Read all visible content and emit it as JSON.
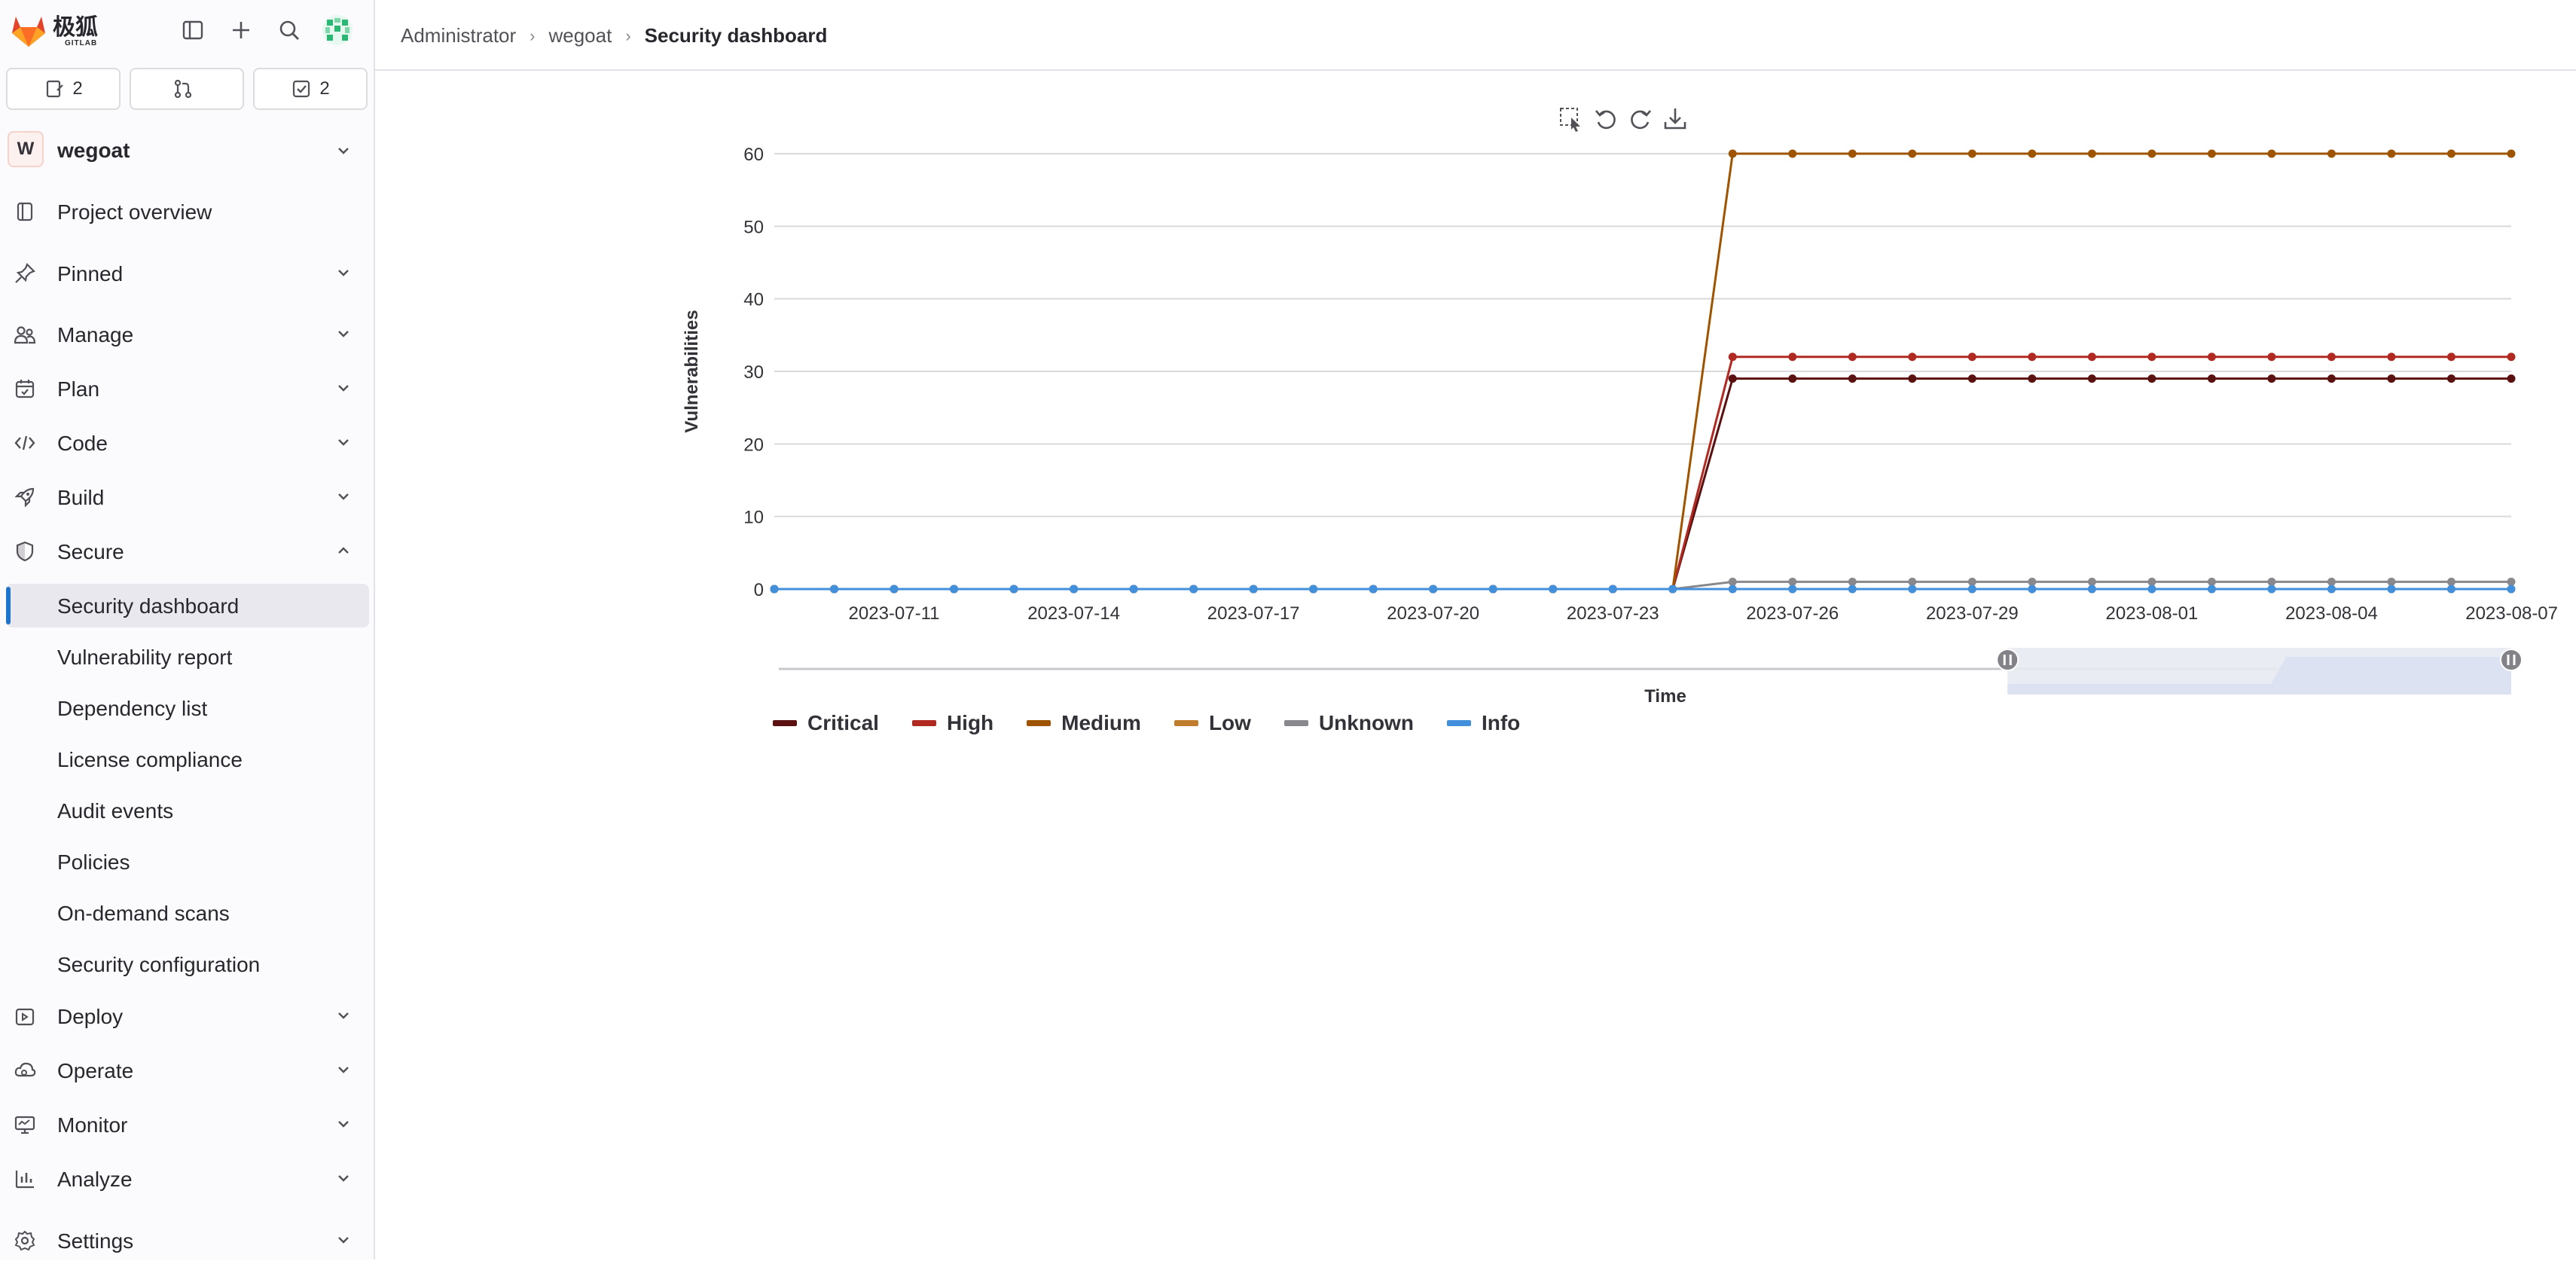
{
  "sidebar": {
    "brand": "极狐",
    "brand_sub": "GITLAB",
    "counters": [
      {
        "icon": "issues-icon",
        "count": "2"
      },
      {
        "icon": "merge-request-icon",
        "count": ""
      },
      {
        "icon": "todo-icon",
        "count": "2"
      }
    ],
    "project": {
      "initial": "W",
      "name": "wegoat"
    },
    "nav": [
      {
        "id": "project-overview",
        "label": "Project overview",
        "icon": "project-icon",
        "chevron": "none"
      },
      {
        "id": "pinned",
        "label": "Pinned",
        "icon": "pin-icon",
        "chevron": "down"
      },
      {
        "id": "manage",
        "label": "Manage",
        "icon": "users-icon",
        "chevron": "down"
      },
      {
        "id": "plan",
        "label": "Plan",
        "icon": "calendar-icon",
        "chevron": "down"
      },
      {
        "id": "code",
        "label": "Code",
        "icon": "code-icon",
        "chevron": "down"
      },
      {
        "id": "build",
        "label": "Build",
        "icon": "rocket-icon",
        "chevron": "down"
      },
      {
        "id": "secure",
        "label": "Secure",
        "icon": "shield-icon",
        "chevron": "up"
      }
    ],
    "secure_items": [
      "Security dashboard",
      "Vulnerability report",
      "Dependency list",
      "License compliance",
      "Audit events",
      "Policies",
      "On-demand scans",
      "Security configuration"
    ],
    "nav_bottom": [
      {
        "id": "deploy",
        "label": "Deploy",
        "icon": "deploy-icon"
      },
      {
        "id": "operate",
        "label": "Operate",
        "icon": "cloud-icon"
      },
      {
        "id": "monitor",
        "label": "Monitor",
        "icon": "monitor-icon"
      },
      {
        "id": "analyze",
        "label": "Analyze",
        "icon": "chart-icon"
      },
      {
        "id": "settings",
        "label": "Settings",
        "icon": "settings-icon"
      }
    ]
  },
  "breadcrumb": {
    "items": [
      "Administrator",
      "wegoat"
    ],
    "current": "Security dashboard"
  },
  "chart_data": {
    "type": "line",
    "title": "",
    "xlabel": "Time",
    "ylabel": "Vulnerabilities",
    "ylim": [
      0,
      60
    ],
    "yticks": [
      0,
      10,
      20,
      30,
      40,
      50,
      60
    ],
    "xticks": [
      "2023-07-11",
      "2023-07-14",
      "2023-07-17",
      "2023-07-20",
      "2023-07-23",
      "2023-07-26",
      "2023-07-29",
      "2023-08-01",
      "2023-08-04",
      "2023-08-07"
    ],
    "x_start": "2023-07-09",
    "x_end": "2023-08-07",
    "grid": true,
    "legend_position": "bottom-left",
    "dataZoom_range": [
      0.71,
      1.0
    ],
    "series": [
      {
        "name": "Critical",
        "color": "#5c1111",
        "values": [
          0,
          0,
          0,
          0,
          0,
          0,
          0,
          0,
          0,
          0,
          0,
          0,
          0,
          0,
          0,
          0,
          29,
          29,
          29,
          29,
          29,
          29,
          29,
          29,
          29,
          29,
          29,
          29,
          29,
          29
        ]
      },
      {
        "name": "High",
        "color": "#b02a22",
        "values": [
          0,
          0,
          0,
          0,
          0,
          0,
          0,
          0,
          0,
          0,
          0,
          0,
          0,
          0,
          0,
          0,
          32,
          32,
          32,
          32,
          32,
          32,
          32,
          32,
          32,
          32,
          32,
          32,
          32,
          32
        ]
      },
      {
        "name": "Medium",
        "color": "#9e5400",
        "values": [
          0,
          0,
          0,
          0,
          0,
          0,
          0,
          0,
          0,
          0,
          0,
          0,
          0,
          0,
          0,
          0,
          60,
          60,
          60,
          60,
          60,
          60,
          60,
          60,
          60,
          60,
          60,
          60,
          60,
          60
        ]
      },
      {
        "name": "Low",
        "color": "#c17d2e",
        "values": [
          0,
          0,
          0,
          0,
          0,
          0,
          0,
          0,
          0,
          0,
          0,
          0,
          0,
          0,
          0,
          0,
          0,
          0,
          0,
          0,
          0,
          0,
          0,
          0,
          0,
          0,
          0,
          0,
          0,
          0
        ]
      },
      {
        "name": "Unknown",
        "color": "#89888d",
        "values": [
          0,
          0,
          0,
          0,
          0,
          0,
          0,
          0,
          0,
          0,
          0,
          0,
          0,
          0,
          0,
          0,
          1,
          1,
          1,
          1,
          1,
          1,
          1,
          1,
          1,
          1,
          1,
          1,
          1,
          1
        ]
      },
      {
        "name": "Info",
        "color": "#428fdc",
        "values": [
          0,
          0,
          0,
          0,
          0,
          0,
          0,
          0,
          0,
          0,
          0,
          0,
          0,
          0,
          0,
          0,
          0,
          0,
          0,
          0,
          0,
          0,
          0,
          0,
          0,
          0,
          0,
          0,
          0,
          0
        ]
      }
    ]
  }
}
